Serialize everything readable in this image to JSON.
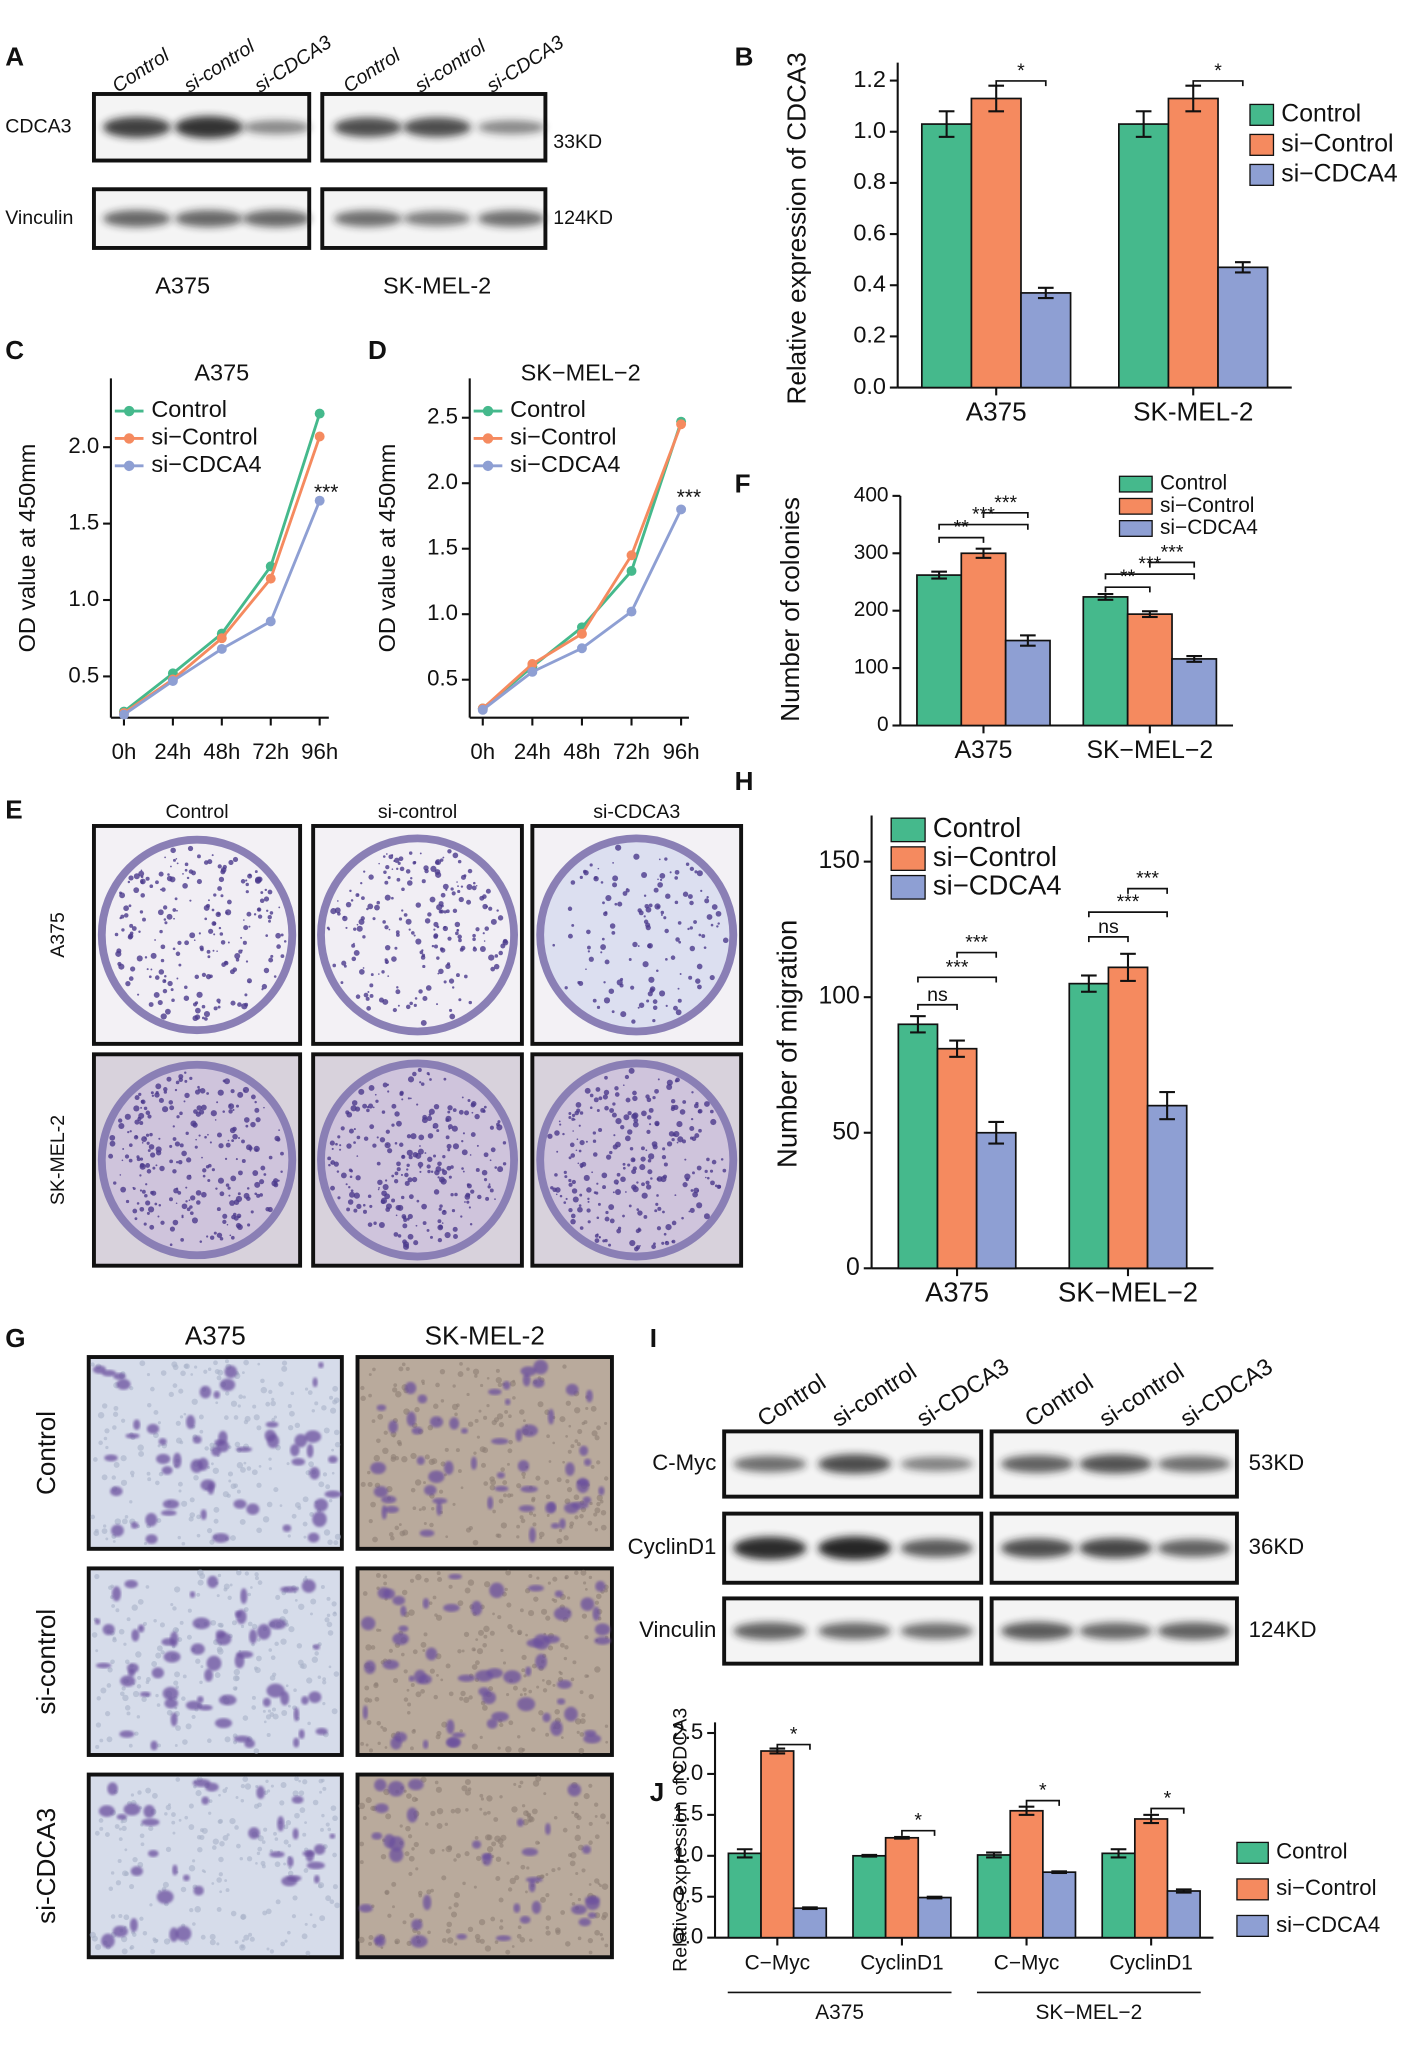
{
  "panel_labels": [
    "A",
    "B",
    "C",
    "D",
    "E",
    "F",
    "G",
    "H",
    "I",
    "J"
  ],
  "blot_A": {
    "lanes": [
      "Control",
      "si-control",
      "si-CDCA3",
      "Control",
      "si-control",
      "si-CDCA3"
    ],
    "proteins": [
      "CDCA3",
      "Vinculin"
    ],
    "sizes": [
      "33KD",
      "124KD"
    ],
    "cell_lines": [
      "A375",
      "SK-MEL-2"
    ]
  },
  "image_E": {
    "columns": [
      "Control",
      "si-control",
      "si-CDCA3"
    ],
    "rows": [
      "A375",
      "SK-MEL-2"
    ]
  },
  "image_G": {
    "columns": [
      "A375",
      "SK-MEL-2"
    ],
    "rows": [
      "Control",
      "si-control",
      "si-CDCA3"
    ]
  },
  "blot_I": {
    "lanes": [
      "Control",
      "si-control",
      "si-CDCA3",
      "Control",
      "si-control",
      "si-CDCA3"
    ],
    "proteins": [
      "C-Myc",
      "CyclinD1",
      "Vinculin"
    ],
    "sizes": [
      "53KD",
      "36KD",
      "124KD"
    ]
  },
  "chart_data": [
    {
      "type": "bar",
      "y_label": "Relative expression of CDCA3",
      "categories": [
        "A375",
        "SK-MEL-2"
      ],
      "series": [
        {
          "name": "Control",
          "color": "#45b98c",
          "values": [
            1.03,
            1.03
          ],
          "errors": [
            0.05,
            0.05
          ]
        },
        {
          "name": "si−Control",
          "color": "#f58a5f",
          "values": [
            1.13,
            1.13
          ],
          "errors": [
            0.05,
            0.05
          ]
        },
        {
          "name": "si−CDCA4",
          "color": "#8e9fd3",
          "values": [
            0.37,
            0.47
          ],
          "errors": [
            0.02,
            0.02
          ]
        }
      ],
      "ylim": [
        0,
        1.27
      ],
      "yticks": [
        {
          "value": 0,
          "label": "0.0"
        },
        0.2,
        0.4,
        0.6,
        0.8,
        {
          "value": 1,
          "label": "1.0"
        },
        1.2
      ],
      "annotations": [
        "*",
        "*"
      ],
      "legend": "right"
    },
    {
      "type": "line",
      "title": "A375",
      "y_label": "OD value at 450mm",
      "categories": [
        "0h",
        "24h",
        "48h",
        "72h",
        "96h"
      ],
      "series": [
        {
          "name": "Control",
          "color": "#45b98c",
          "values": [
            0.27,
            0.52,
            0.78,
            1.22,
            2.22
          ]
        },
        {
          "name": "si−Control",
          "color": "#f58a5f",
          "values": [
            0.26,
            0.48,
            0.75,
            1.14,
            2.07
          ]
        },
        {
          "name": "si−CDCA4",
          "color": "#8e9fd3",
          "values": [
            0.25,
            0.47,
            0.68,
            0.86,
            1.65
          ]
        }
      ],
      "ylim": [
        0.23,
        2.45
      ],
      "yticks": [
        0.5,
        {
          "value": 1,
          "label": "1.0"
        },
        1.5,
        {
          "value": 2,
          "label": "2.0"
        }
      ],
      "annotations": [
        "***"
      ],
      "legend": "top-left"
    },
    {
      "type": "line",
      "title": "SK−MEL−2",
      "y_label": "OD value at 450mm",
      "categories": [
        "0h",
        "24h",
        "48h",
        "72h",
        "96h"
      ],
      "series": [
        {
          "name": "Control",
          "color": "#45b98c",
          "values": [
            0.28,
            0.6,
            0.9,
            1.33,
            2.47
          ]
        },
        {
          "name": "si−Control",
          "color": "#f58a5f",
          "values": [
            0.28,
            0.62,
            0.85,
            1.45,
            2.45
          ]
        },
        {
          "name": "si−CDCA4",
          "color": "#8e9fd3",
          "values": [
            0.27,
            0.56,
            0.74,
            1.02,
            1.8
          ]
        }
      ],
      "ylim": [
        0.21,
        2.8
      ],
      "yticks": [
        0.5,
        {
          "value": 1,
          "label": "1.0"
        },
        1.5,
        {
          "value": 2,
          "label": "2.0"
        },
        2.5
      ],
      "annotations": [
        "***"
      ],
      "legend": "top-left"
    },
    {
      "type": "bar",
      "y_label": "Number of colonies",
      "categories": [
        "A375",
        "SK−MEL−2"
      ],
      "series": [
        {
          "name": "Control",
          "color": "#45b98c",
          "values": [
            262,
            224
          ],
          "errors": [
            6,
            5
          ]
        },
        {
          "name": "si−Control",
          "color": "#f58a5f",
          "values": [
            300,
            194
          ],
          "errors": [
            8,
            5
          ]
        },
        {
          "name": "si−CDCA4",
          "color": "#8e9fd3",
          "values": [
            148,
            116
          ],
          "errors": [
            9,
            5
          ]
        }
      ],
      "ylim": [
        0,
        400
      ],
      "yticks": [
        0,
        100,
        200,
        300,
        400
      ],
      "annotations": [
        "***",
        "**",
        "***",
        "***",
        "**",
        "***"
      ],
      "legend": "top-right"
    },
    {
      "type": "bar",
      "y_label": "Number of migration",
      "categories": [
        "A375",
        "SK−MEL−2"
      ],
      "series": [
        {
          "name": "Control",
          "color": "#45b98c",
          "values": [
            90,
            105
          ],
          "errors": [
            3,
            3
          ]
        },
        {
          "name": "si−Control",
          "color": "#f58a5f",
          "values": [
            81,
            111
          ],
          "errors": [
            3,
            5
          ]
        },
        {
          "name": "si−CDCA4",
          "color": "#8e9fd3",
          "values": [
            50,
            60
          ],
          "errors": [
            4,
            5
          ]
        }
      ],
      "ylim": [
        0,
        167
      ],
      "yticks": [
        0,
        50,
        100,
        150
      ],
      "annotations": [
        "ns",
        "***",
        "***",
        "ns",
        "***",
        "***"
      ],
      "legend": "top-left"
    },
    {
      "type": "bar",
      "y_label": "Relative expression of CDCA3",
      "categories": [
        "C−Myc",
        "CyclinD1",
        "C−Myc",
        "CyclinD1"
      ],
      "groups": [
        "A375",
        "SK−MEL−2"
      ],
      "series": [
        {
          "name": "Control",
          "color": "#45b98c",
          "values": [
            1.03,
            1.0,
            1.01,
            1.03
          ],
          "errors": [
            0.05,
            0.01,
            0.03,
            0.05
          ]
        },
        {
          "name": "si−Control",
          "color": "#f58a5f",
          "values": [
            2.28,
            1.22,
            1.55,
            1.45
          ],
          "errors": [
            0.03,
            0.01,
            0.05,
            0.05
          ]
        },
        {
          "name": "si−CDCA4",
          "color": "#8e9fd3",
          "values": [
            0.36,
            0.49,
            0.8,
            0.57
          ],
          "errors": [
            0.01,
            0.01,
            0.01,
            0.02
          ]
        }
      ],
      "ylim": [
        0,
        2.63
      ],
      "yticks": [
        {
          "value": 0,
          "label": "0.0"
        },
        0.5,
        {
          "value": 1,
          "label": "1.0"
        },
        1.5,
        {
          "value": 2,
          "label": "2.0"
        },
        2.5
      ],
      "annotations": [
        "*",
        "*",
        "*",
        "*"
      ],
      "legend": "right"
    }
  ]
}
